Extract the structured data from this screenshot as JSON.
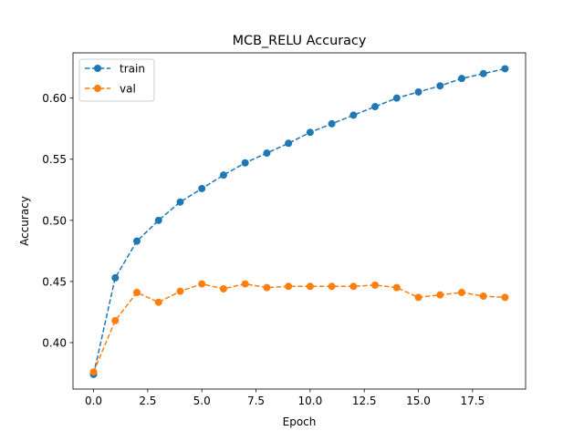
{
  "chart_data": {
    "type": "line",
    "title": "MCB_RELU Accuracy",
    "xlabel": "Epoch",
    "ylabel": "Accuracy",
    "xlim": [
      -0.95,
      19.95
    ],
    "ylim": [
      0.362,
      0.637
    ],
    "xticks": [
      0.0,
      2.5,
      5.0,
      7.5,
      10.0,
      12.5,
      15.0,
      17.5
    ],
    "xtick_labels": [
      "0.0",
      "2.5",
      "5.0",
      "7.5",
      "10.0",
      "12.5",
      "15.0",
      "17.5"
    ],
    "yticks": [
      0.4,
      0.45,
      0.5,
      0.55,
      0.6
    ],
    "ytick_labels": [
      "0.40",
      "0.45",
      "0.50",
      "0.55",
      "0.60"
    ],
    "grid": false,
    "legend_position": "top-left",
    "x": [
      0,
      1,
      2,
      3,
      4,
      5,
      6,
      7,
      8,
      9,
      10,
      11,
      12,
      13,
      14,
      15,
      16,
      17,
      18,
      19
    ],
    "series": [
      {
        "name": "train",
        "color": "#1f77b4",
        "line_style": "dashed",
        "marker": "circle",
        "values": [
          0.374,
          0.453,
          0.483,
          0.5,
          0.515,
          0.526,
          0.537,
          0.547,
          0.555,
          0.563,
          0.572,
          0.579,
          0.586,
          0.593,
          0.6,
          0.605,
          0.61,
          0.616,
          0.62,
          0.624
        ]
      },
      {
        "name": "val",
        "color": "#ff7f0e",
        "line_style": "dashed",
        "marker": "circle",
        "values": [
          0.376,
          0.418,
          0.441,
          0.433,
          0.442,
          0.448,
          0.444,
          0.448,
          0.445,
          0.446,
          0.446,
          0.446,
          0.446,
          0.447,
          0.445,
          0.437,
          0.439,
          0.441,
          0.438,
          0.437
        ]
      }
    ]
  }
}
